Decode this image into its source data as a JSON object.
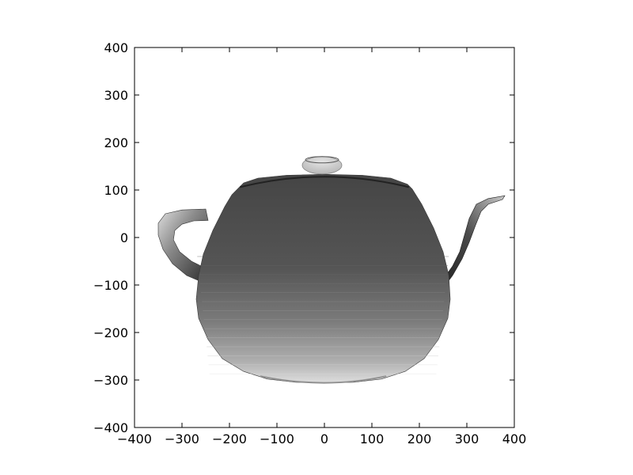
{
  "chart_data": {
    "type": "scatter",
    "subject": "teapot",
    "shading": "grayscale",
    "xlim": [
      -400,
      400
    ],
    "ylim": [
      -400,
      400
    ],
    "xticks": [
      -400,
      -300,
      -200,
      -100,
      0,
      100,
      200,
      300,
      400
    ],
    "yticks": [
      -400,
      -300,
      -200,
      -100,
      0,
      100,
      200,
      300,
      400
    ],
    "xtick_labels": [
      "−400",
      "−300",
      "−200",
      "−100",
      "0",
      "100",
      "200",
      "300",
      "400"
    ],
    "ytick_labels": [
      "−400",
      "−300",
      "−200",
      "−100",
      "0",
      "100",
      "200",
      "300",
      "400"
    ],
    "grid": false,
    "title": "",
    "xlabel": "",
    "ylabel": "",
    "colors": {
      "body_top": "#4a4a4a",
      "body_bottom": "#d0d0d0",
      "knob": "#cfcfcf",
      "dark_edge": "#222222",
      "axes": "#000000"
    },
    "parts": [
      {
        "name": "teapot-knob",
        "x": [
          -45,
          45
        ],
        "y": [
          135,
          170
        ]
      },
      {
        "name": "teapot-body",
        "x": [
          -270,
          265
        ],
        "y": [
          -305,
          133
        ]
      },
      {
        "name": "teapot-handle",
        "x": [
          -350,
          -250
        ],
        "y": [
          -95,
          60
        ]
      },
      {
        "name": "teapot-spout",
        "x": [
          230,
          380
        ],
        "y": [
          -100,
          88
        ]
      }
    ]
  }
}
